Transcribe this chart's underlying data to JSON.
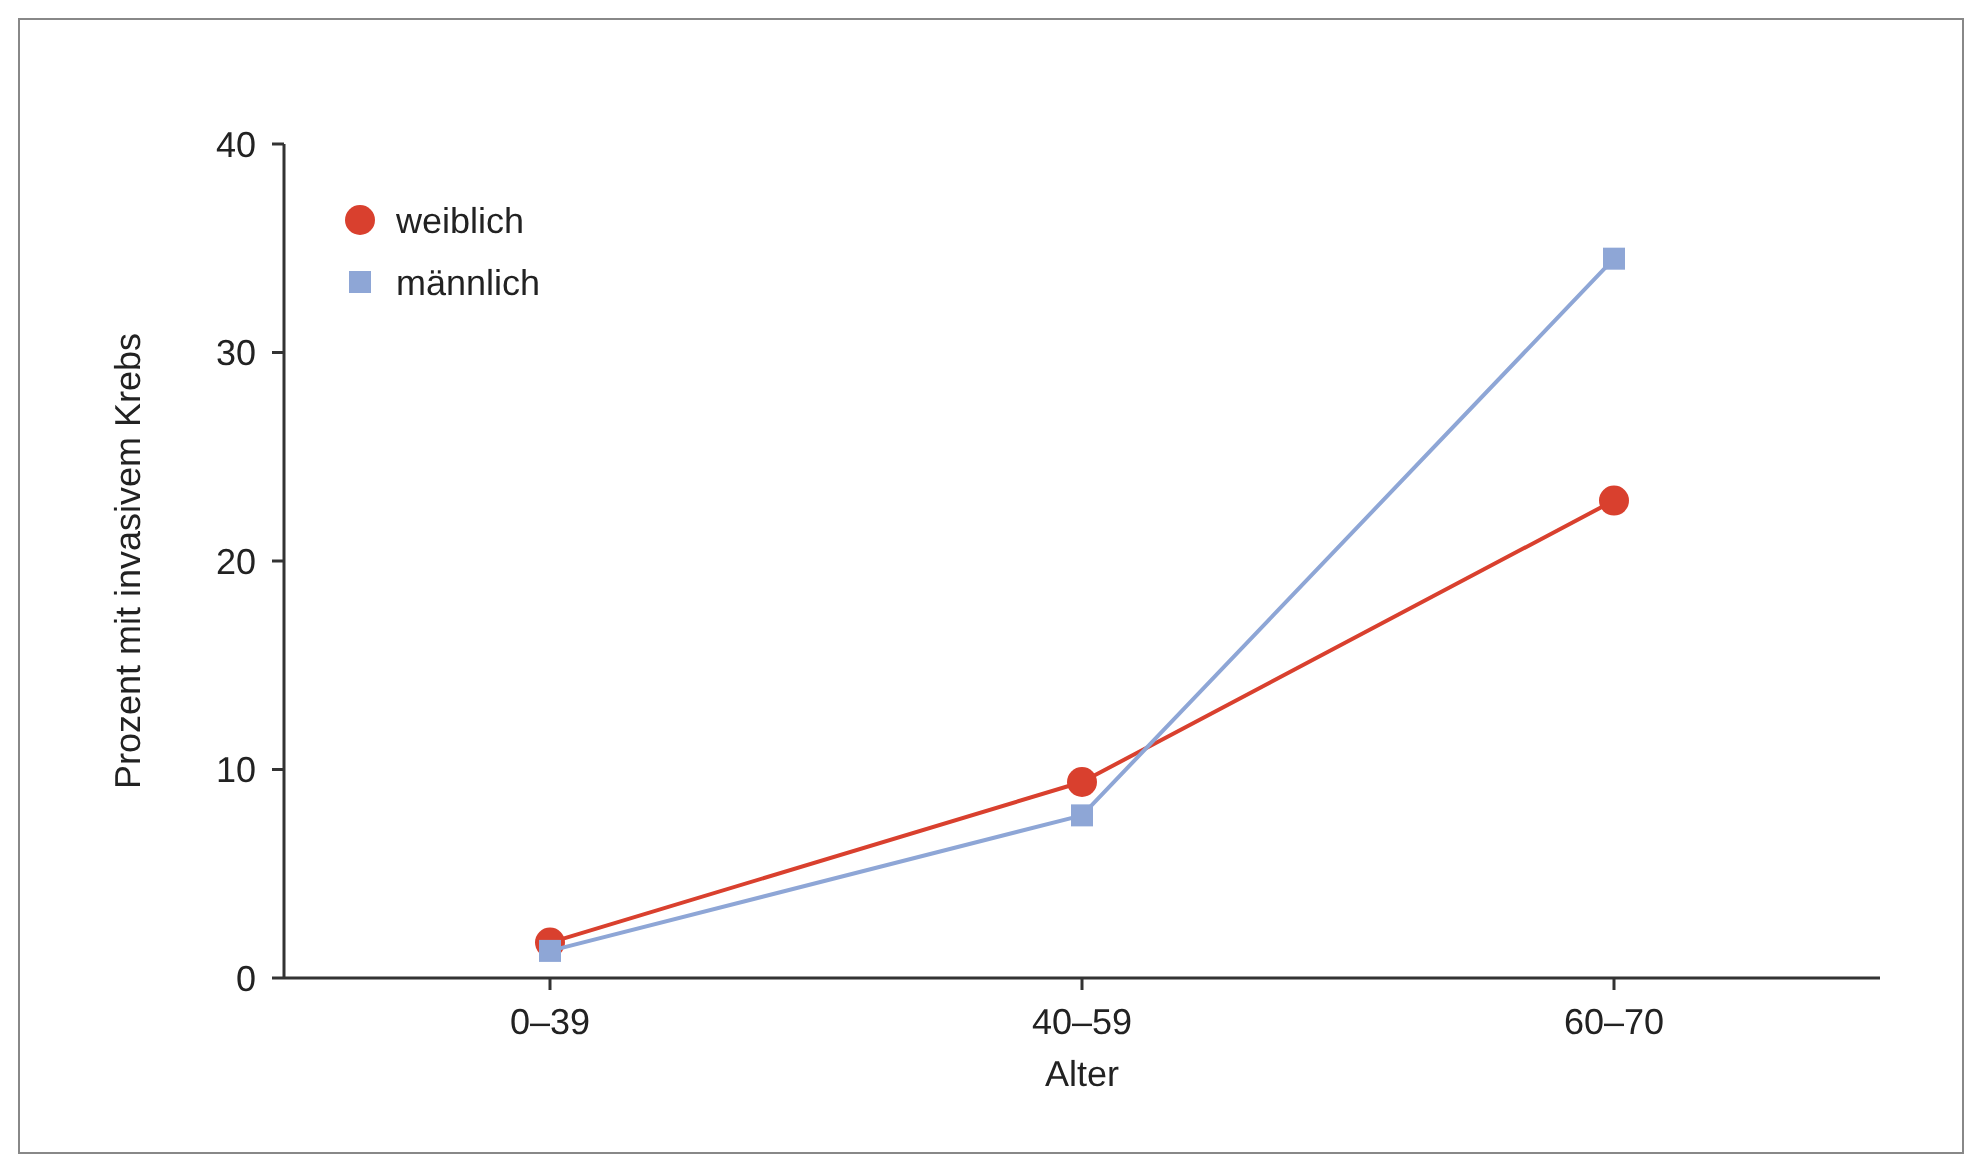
{
  "chart_data": {
    "type": "line",
    "xlabel": "Alter",
    "ylabel": "Prozent mit invasivem Krebs",
    "categories": [
      "0–39",
      "40–59",
      "60–70"
    ],
    "series": [
      {
        "name": "weiblich",
        "color": "#d9402e",
        "marker": "circle",
        "values": [
          1.7,
          9.4,
          22.9
        ]
      },
      {
        "name": "männlich",
        "color": "#8ea6d6",
        "marker": "square",
        "values": [
          1.3,
          7.8,
          34.5
        ]
      }
    ],
    "ylim": [
      0,
      40
    ],
    "yticks": [
      0,
      10,
      20,
      30,
      40
    ],
    "grid": false,
    "legend": "top left"
  }
}
